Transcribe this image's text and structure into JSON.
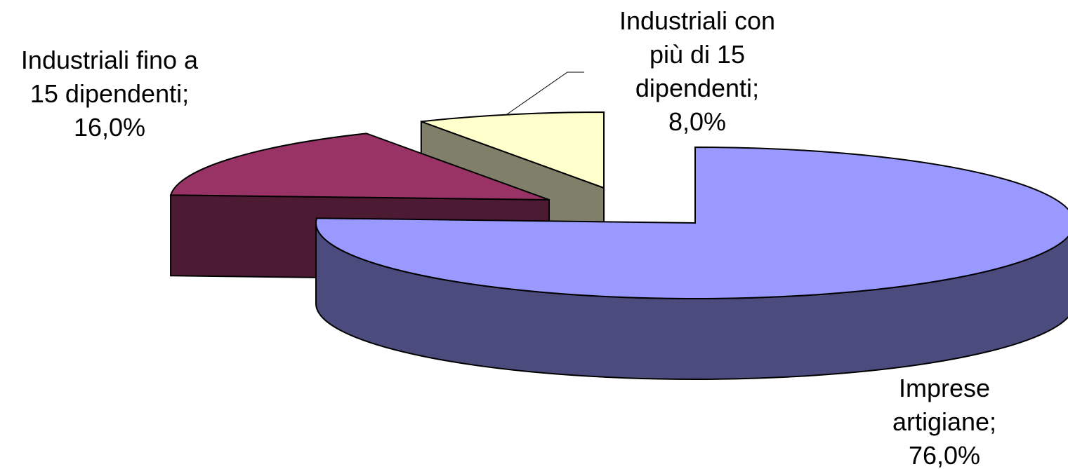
{
  "chart_data": {
    "type": "pie",
    "categories": [
      "Imprese artigiane",
      "Industriali fino a 15 dipendenti",
      "Industriali con più di 15 dipendenti"
    ],
    "values": [
      76.0,
      16.0,
      8.0
    ],
    "value_labels": [
      "76,0%",
      "16,0%",
      "8,0%"
    ],
    "separator": ";",
    "colors": [
      "#9999ff",
      "#993366",
      "#ffffcc"
    ],
    "side_colors": [
      "#4b4b7e",
      "#4d1a33",
      "#80806a"
    ]
  }
}
